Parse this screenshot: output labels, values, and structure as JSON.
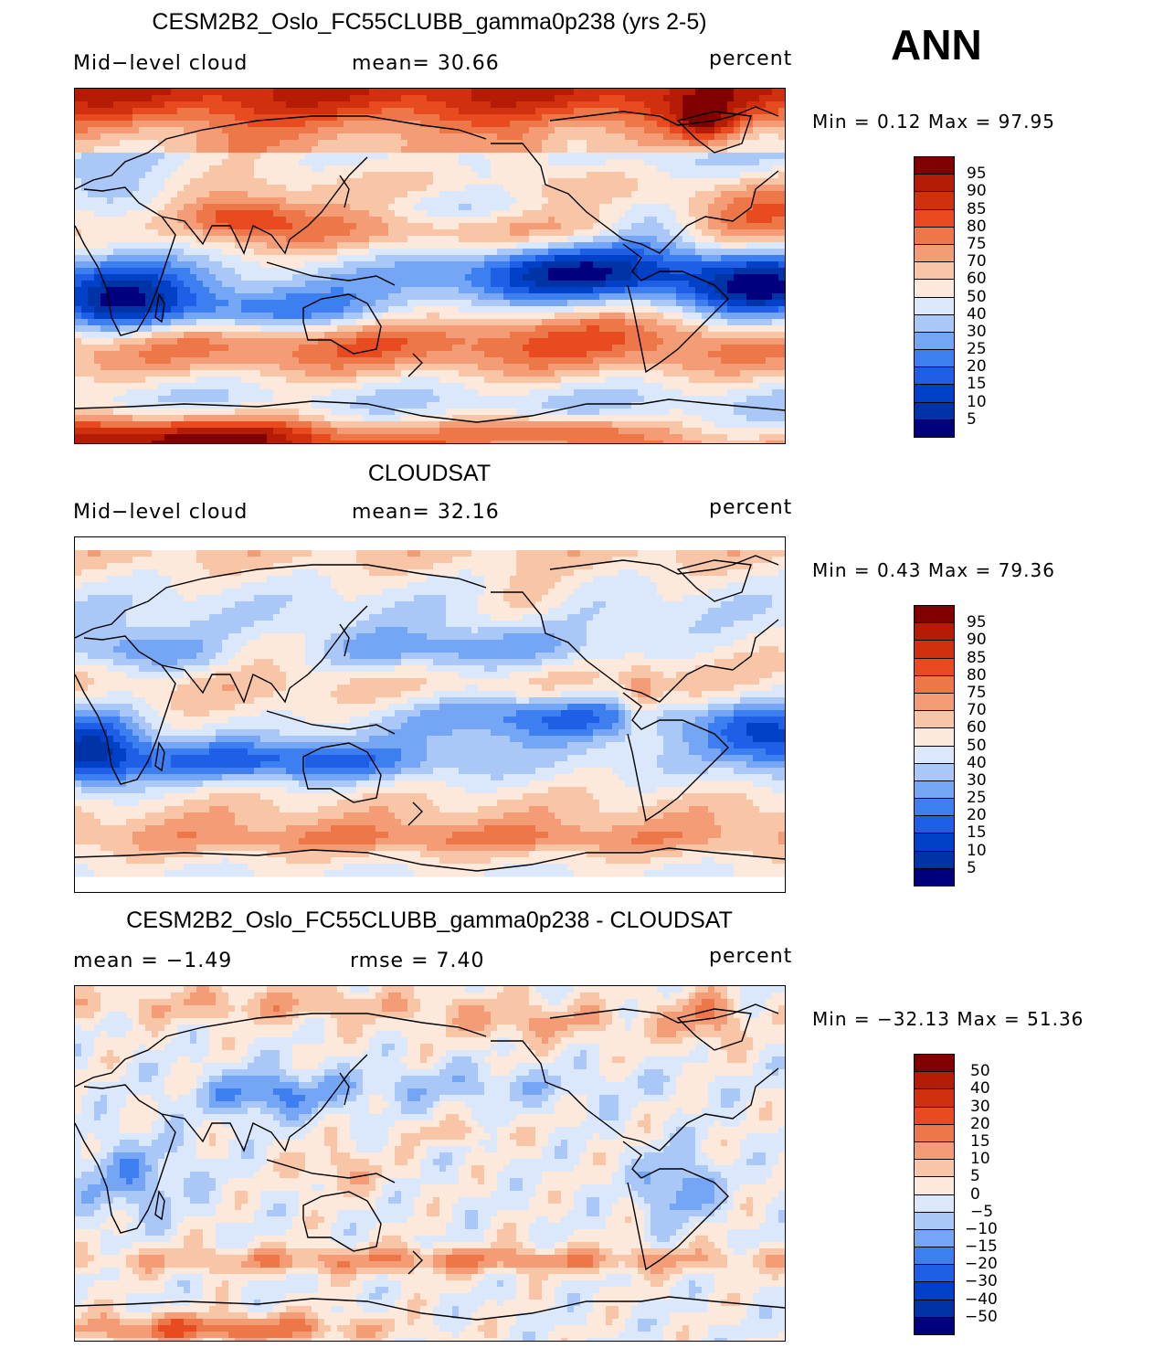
{
  "season": "ANN",
  "colors": {
    "scale": [
      "#00007f",
      "#0033a6",
      "#0041c8",
      "#1f5fe8",
      "#3d7ff0",
      "#74a6f5",
      "#a9c8f8",
      "#dbe8fb",
      "#fde9dc",
      "#f8c5a6",
      "#f39c76",
      "#ee774a",
      "#e84b1f",
      "#d0300e",
      "#b41c06",
      "#800000"
    ],
    "coast": "#000000"
  },
  "panels": [
    {
      "title": "CESM2B2_Oslo_FC55CLUBB_gamma0p238 (yrs 2-5)",
      "left_label": "Mid−level cloud",
      "center_label": "mean=   30.66",
      "units": "percent",
      "min_max": "Min =    0.12 Max =   97.95",
      "colorbar_labels": [
        "95",
        "90",
        "85",
        "80",
        "75",
        "70",
        "60",
        "50",
        "40",
        "30",
        "25",
        "20",
        "15",
        "10",
        "5"
      ],
      "pattern": "model"
    },
    {
      "title": "CLOUDSAT",
      "left_label": "Mid−level cloud",
      "center_label": "mean=   32.16",
      "units": "percent",
      "min_max": "Min =    0.43 Max =   79.36",
      "colorbar_labels": [
        "95",
        "90",
        "85",
        "80",
        "75",
        "70",
        "60",
        "50",
        "40",
        "30",
        "25",
        "20",
        "15",
        "10",
        "5"
      ],
      "pattern": "obs"
    },
    {
      "title": "CESM2B2_Oslo_FC55CLUBB_gamma0p238 - CLOUDSAT",
      "left_label": "mean =   −1.49",
      "center_label": "rmse =    7.40",
      "units": "percent",
      "min_max": "Min = −32.13 Max =   51.36",
      "colorbar_labels": [
        "50",
        "40",
        "30",
        "20",
        "15",
        "10",
        "5",
        "0",
        "−5",
        "−10",
        "−15",
        "−20",
        "−30",
        "−40",
        "−50"
      ],
      "pattern": "diff"
    }
  ]
}
